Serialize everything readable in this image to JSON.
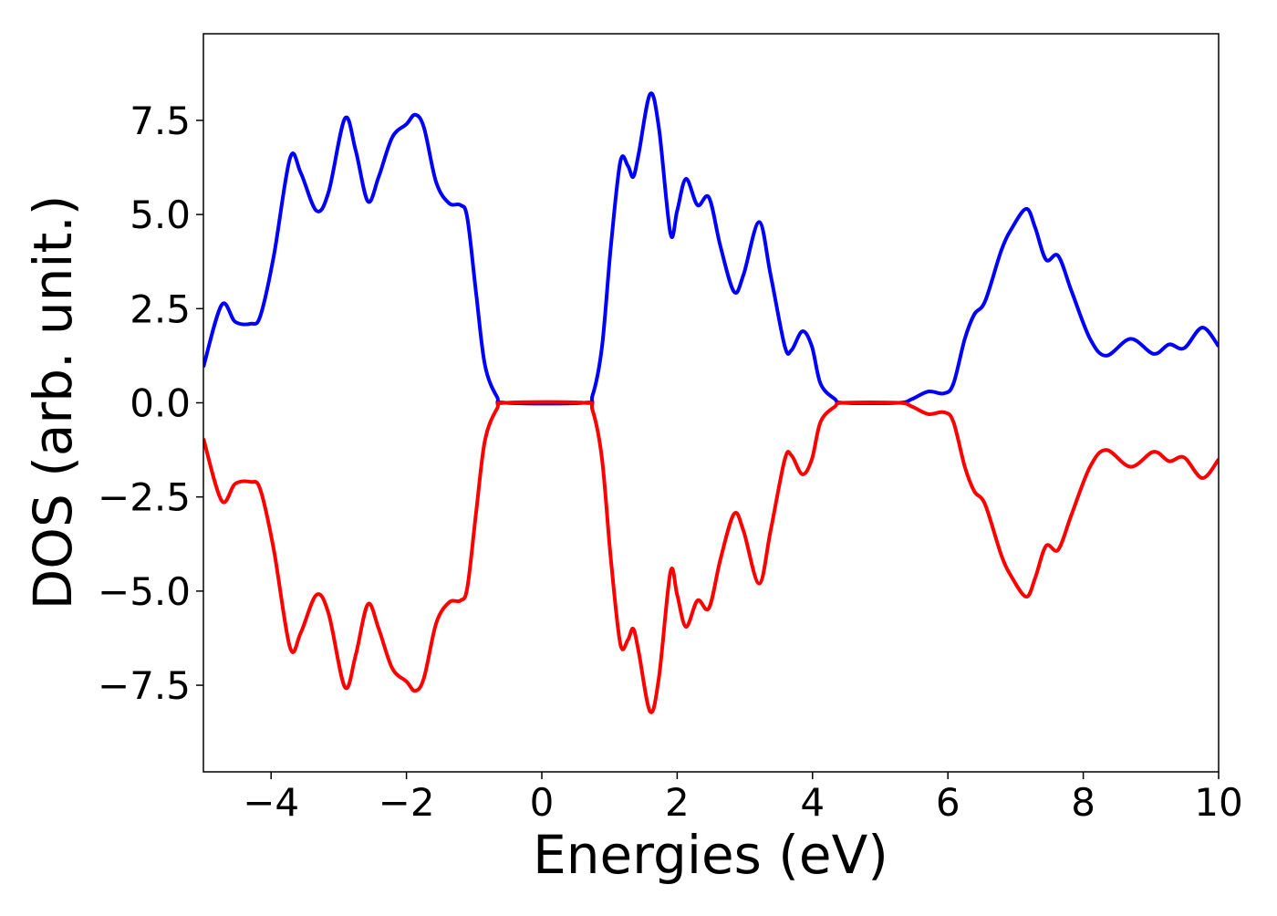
{
  "chart_data": {
    "type": "line",
    "x_label": "Energies (eV)",
    "y_label": "DOS (arb. unit.)",
    "x": [
      -5,
      -4.73,
      -4.53,
      -4.3,
      -4.16,
      -3.96,
      -3.72,
      -3.56,
      -3.33,
      -3.15,
      -2.91,
      -2.75,
      -2.57,
      -2.41,
      -2.21,
      -2.0,
      -1.87,
      -1.74,
      -1.56,
      -1.37,
      -1.2,
      -1.1,
      -0.97,
      -0.84,
      -0.66,
      -0.53,
      0.62,
      0.75,
      0.89,
      1.02,
      1.16,
      1.27,
      1.35,
      1.43,
      1.6,
      1.73,
      1.9,
      2.0,
      2.13,
      2.3,
      2.47,
      2.64,
      2.84,
      2.98,
      3.21,
      3.38,
      3.59,
      3.69,
      3.85,
      3.99,
      4.12,
      4.33,
      4.46,
      5.27,
      5.47,
      5.71,
      5.94,
      6.08,
      6.25,
      6.39,
      6.55,
      6.79,
      6.95,
      7.16,
      7.29,
      7.45,
      7.63,
      7.83,
      8.1,
      8.34,
      8.7,
      9.04,
      9.27,
      9.49,
      9.76,
      10
    ],
    "series": [
      {
        "color": "#0000ff",
        "values": [
          0.95,
          2.6,
          2.15,
          2.1,
          2.3,
          3.9,
          6.5,
          6.1,
          5.1,
          5.6,
          7.55,
          6.7,
          5.35,
          6.0,
          7.05,
          7.4,
          7.65,
          7.3,
          5.85,
          5.3,
          5.25,
          4.9,
          2.9,
          1.0,
          0.15,
          0,
          0,
          0.2,
          1.5,
          4.15,
          6.4,
          6.3,
          6.0,
          6.6,
          8.2,
          7.3,
          4.5,
          5.1,
          5.95,
          5.25,
          5.45,
          4.15,
          2.95,
          3.4,
          4.8,
          3.4,
          1.5,
          1.4,
          1.9,
          1.5,
          0.5,
          0.1,
          0,
          0,
          0.1,
          0.3,
          0.25,
          0.5,
          1.7,
          2.35,
          2.7,
          4.05,
          4.65,
          5.15,
          4.65,
          3.8,
          3.9,
          2.95,
          1.7,
          1.25,
          1.7,
          1.3,
          1.55,
          1.45,
          2.0,
          1.5
        ]
      },
      {
        "color": "#ff0000",
        "values": [
          -0.95,
          -2.6,
          -2.15,
          -2.1,
          -2.3,
          -3.9,
          -6.5,
          -6.1,
          -5.1,
          -5.6,
          -7.55,
          -6.7,
          -5.35,
          -6.0,
          -7.05,
          -7.4,
          -7.65,
          -7.3,
          -5.85,
          -5.3,
          -5.25,
          -4.9,
          -2.9,
          -1.0,
          -0.15,
          0,
          0,
          -0.2,
          -1.5,
          -4.15,
          -6.4,
          -6.3,
          -6.0,
          -6.6,
          -8.2,
          -7.3,
          -4.5,
          -5.1,
          -5.95,
          -5.25,
          -5.45,
          -4.15,
          -2.95,
          -3.4,
          -4.8,
          -3.4,
          -1.5,
          -1.4,
          -1.9,
          -1.5,
          -0.5,
          -0.1,
          0,
          0,
          -0.1,
          -0.3,
          -0.25,
          -0.5,
          -1.7,
          -2.35,
          -2.7,
          -4.05,
          -4.65,
          -5.15,
          -4.65,
          -3.8,
          -3.9,
          -2.95,
          -1.7,
          -1.25,
          -1.7,
          -1.3,
          -1.55,
          -1.45,
          -2.0,
          -1.5
        ]
      }
    ],
    "xlim": [
      -5,
      10
    ],
    "ylim": [
      -9.8,
      9.8
    ],
    "xticks": [
      {
        "value": -4,
        "label": "−4"
      },
      {
        "value": -2,
        "label": "−2"
      },
      0,
      2,
      4,
      6,
      8,
      10
    ],
    "yticks": [
      {
        "value": -7.5,
        "label": "−7.5"
      },
      {
        "value": -5,
        "label": "−5.0"
      },
      {
        "value": -2.5,
        "label": "−2.5"
      },
      {
        "value": 0,
        "label": "0.0"
      },
      2.5,
      {
        "value": 5,
        "label": "5.0"
      },
      7.5
    ],
    "grid": false
  }
}
